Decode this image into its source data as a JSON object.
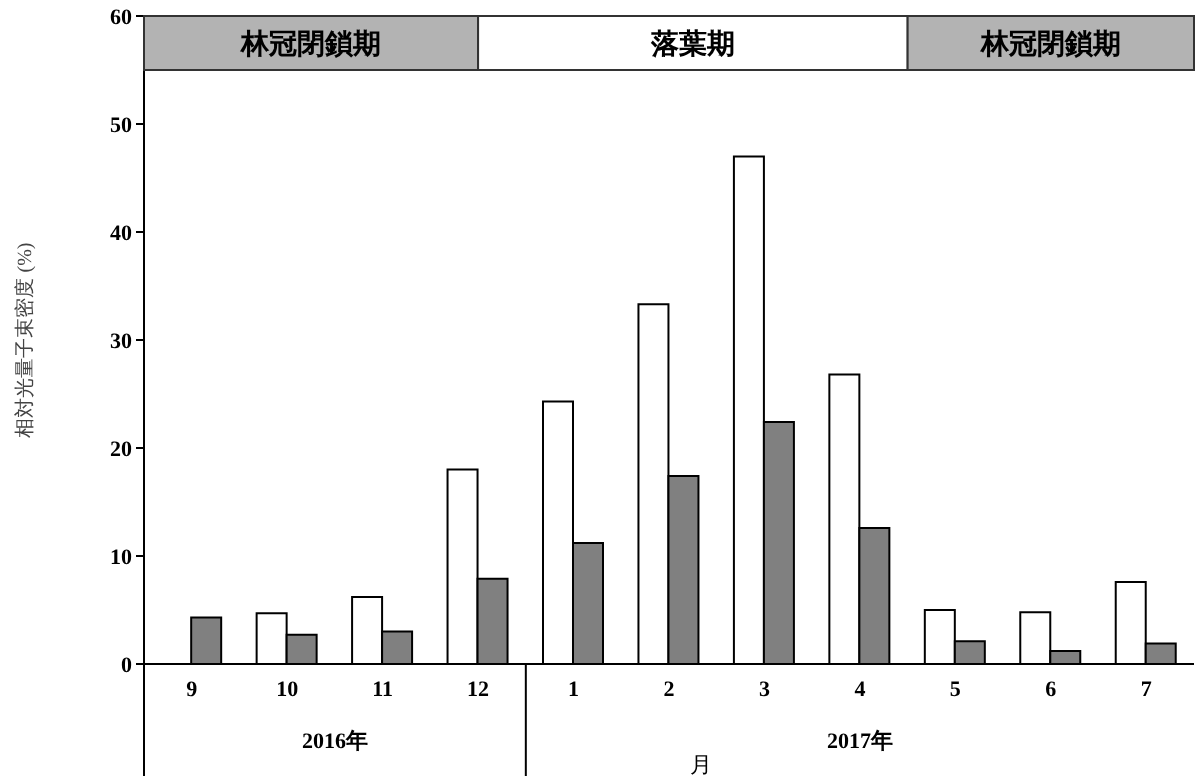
{
  "chart_data": {
    "type": "bar",
    "ylabel": "相対光量子束密度 (%)",
    "xlabel": "月",
    "categories": [
      "9",
      "10",
      "11",
      "12",
      "1",
      "2",
      "3",
      "4",
      "5",
      "6",
      "7"
    ],
    "series": [
      {
        "color": "#ffffff",
        "values": [
          null,
          4.7,
          6.2,
          18,
          24.3,
          33.3,
          47,
          26.8,
          5,
          4.8,
          7.6
        ]
      },
      {
        "color": "#808080",
        "values": [
          4.3,
          2.7,
          3,
          7.9,
          11.2,
          17.4,
          22.4,
          12.6,
          2.1,
          1.2,
          1.9
        ]
      }
    ],
    "ylim": [
      0,
      60
    ],
    "yticks": [
      0,
      10,
      20,
      30,
      40,
      50,
      60
    ],
    "grid": false,
    "annotations": [
      "林冠閉鎖期",
      "落葉期",
      "林冠閉鎖期",
      "2016年",
      "2017年"
    ]
  }
}
